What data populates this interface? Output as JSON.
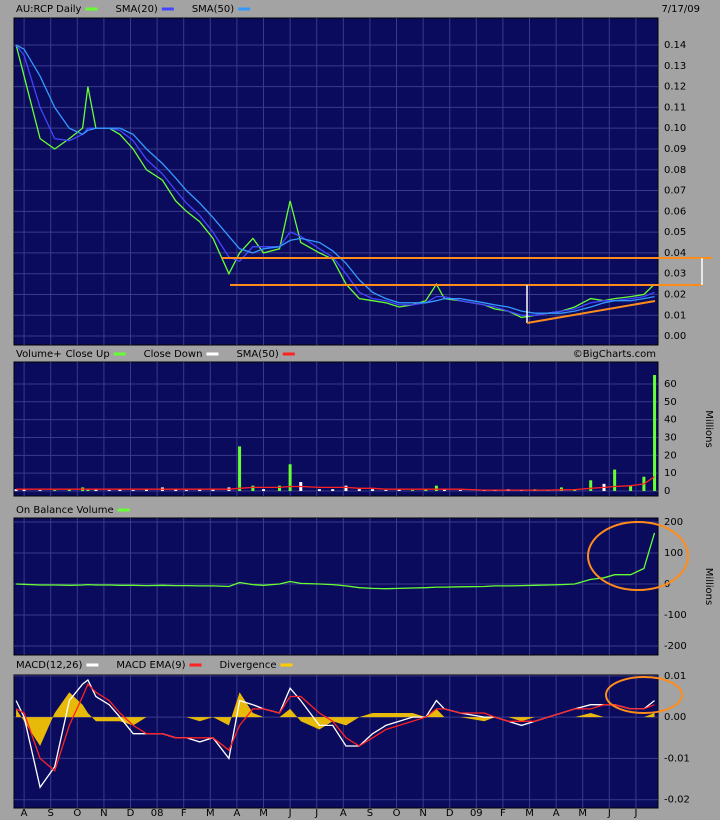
{
  "chart_data": [
    {
      "type": "line",
      "date": "7/17/09",
      "x": [
        -0.3,
        0,
        0.6,
        1.15,
        1.7,
        2.2,
        2.4,
        2.7,
        3.2,
        3.6,
        4.1,
        4.6,
        5.2,
        5.7,
        6.1,
        6.6,
        7.1,
        7.7,
        8.1,
        8.6,
        9.0,
        9.6,
        10,
        10.4,
        11.1,
        11.6,
        12.1,
        12.6,
        13.1,
        13.6,
        14.1,
        14.6,
        15.1,
        15.5,
        15.8,
        16.4,
        17.3,
        17.7,
        18.2,
        18.7,
        19.2,
        19.7,
        20.2,
        20.7,
        21.3,
        21.8,
        22.2,
        22.8,
        23.3,
        23.7
      ],
      "xlim": [
        -0.38,
        23.83
      ],
      "xticks": [
        {
          "value": 0,
          "label": "A"
        },
        {
          "value": 1,
          "label": "S"
        },
        {
          "value": 2,
          "label": "O"
        },
        {
          "value": 3,
          "label": "N"
        },
        {
          "value": 4,
          "label": "D"
        },
        {
          "value": 5,
          "label": "08"
        },
        {
          "value": 6,
          "label": "F"
        },
        {
          "value": 7,
          "label": "M"
        },
        {
          "value": 8,
          "label": "A"
        },
        {
          "value": 9,
          "label": "M"
        },
        {
          "value": 10,
          "label": "J"
        },
        {
          "value": 11,
          "label": "J"
        },
        {
          "value": 12,
          "label": "A"
        },
        {
          "value": 13,
          "label": "S"
        },
        {
          "value": 14,
          "label": "O"
        },
        {
          "value": 15,
          "label": "N"
        },
        {
          "value": 16,
          "label": "D"
        },
        {
          "value": 17,
          "label": "09"
        },
        {
          "value": 18,
          "label": "F"
        },
        {
          "value": 19,
          "label": "M"
        },
        {
          "value": 20,
          "label": "A"
        },
        {
          "value": 21,
          "label": "M"
        },
        {
          "value": 22,
          "label": "J"
        },
        {
          "value": 23,
          "label": "J"
        }
      ],
      "ylim": [
        -0.0043,
        0.153
      ],
      "yticks": [
        {
          "value": 0,
          "label": "0.00"
        },
        0.01,
        0.02,
        0.03,
        0.04,
        0.05,
        0.06,
        0.07,
        0.08,
        0.09,
        {
          "value": 0.1,
          "label": "0.10"
        },
        0.11,
        0.12,
        0.13,
        0.14
      ],
      "grid": true,
      "series": [
        {
          "name": "AU:RCP Daily",
          "color": "#66ff33",
          "values": [
            0.14,
            0.125,
            0.095,
            0.09,
            0.095,
            0.1,
            0.12,
            0.1,
            0.1,
            0.097,
            0.09,
            0.08,
            0.075,
            0.065,
            0.06,
            0.055,
            0.047,
            0.03,
            0.04,
            0.047,
            0.04,
            0.042,
            0.065,
            0.045,
            0.04,
            0.037,
            0.025,
            0.018,
            0.017,
            0.016,
            0.014,
            0.015,
            0.017,
            0.025,
            0.018,
            0.017,
            0.015,
            0.013,
            0.012,
            0.009,
            0.01,
            0.011,
            0.012,
            0.014,
            0.018,
            0.017,
            0.018,
            0.019,
            0.02,
            0.025
          ]
        },
        {
          "name": "SMA(20)",
          "color": "#4444ff",
          "values": [
            0.14,
            0.135,
            0.11,
            0.095,
            0.094,
            0.097,
            0.1,
            0.1,
            0.1,
            0.099,
            0.094,
            0.085,
            0.078,
            0.07,
            0.064,
            0.058,
            0.05,
            0.038,
            0.036,
            0.043,
            0.043,
            0.043,
            0.05,
            0.048,
            0.042,
            0.038,
            0.03,
            0.021,
            0.018,
            0.017,
            0.015,
            0.015,
            0.016,
            0.019,
            0.019,
            0.017,
            0.015,
            0.014,
            0.012,
            0.01,
            0.01,
            0.011,
            0.012,
            0.013,
            0.016,
            0.017,
            0.017,
            0.018,
            0.019,
            0.021
          ]
        },
        {
          "name": "SMA(50)",
          "color": "#3399ff",
          "values": [
            0.14,
            0.138,
            0.125,
            0.11,
            0.1,
            0.097,
            0.099,
            0.1,
            0.1,
            0.1,
            0.097,
            0.09,
            0.083,
            0.076,
            0.07,
            0.064,
            0.057,
            0.048,
            0.042,
            0.04,
            0.042,
            0.043,
            0.046,
            0.047,
            0.045,
            0.041,
            0.035,
            0.027,
            0.021,
            0.018,
            0.016,
            0.016,
            0.016,
            0.017,
            0.018,
            0.018,
            0.016,
            0.015,
            0.014,
            0.012,
            0.011,
            0.011,
            0.011,
            0.012,
            0.014,
            0.016,
            0.017,
            0.017,
            0.018,
            0.019
          ]
        }
      ]
    },
    {
      "type": "bar",
      "title": "Volume+",
      "note": "©BigCharts.com",
      "y_label": "Millions",
      "ylim": [
        -2.8,
        72.3
      ],
      "yticks": [
        0,
        10,
        20,
        30,
        40,
        50,
        60
      ],
      "grid": true,
      "series": [
        {
          "name": "Close Up",
          "color": "#66ff33",
          "values": [
            null,
            null,
            null,
            0.5,
            1,
            2,
            1,
            null,
            null,
            null,
            null,
            null,
            null,
            null,
            null,
            null,
            null,
            null,
            25,
            3,
            null,
            3,
            15,
            null,
            null,
            null,
            null,
            null,
            null,
            null,
            null,
            0.5,
            1,
            3,
            null,
            null,
            null,
            null,
            null,
            null,
            1,
            0.5,
            2,
            1,
            6,
            null,
            12,
            3,
            8,
            65
          ]
        },
        {
          "name": "Close Down",
          "color": "#ffffff",
          "values": [
            1,
            1,
            0.5,
            null,
            null,
            null,
            null,
            1,
            0.5,
            1,
            0.5,
            1,
            2,
            1,
            0.5,
            1,
            1,
            2,
            null,
            null,
            1,
            null,
            null,
            5,
            1,
            1,
            3,
            1,
            1,
            0.5,
            1,
            null,
            null,
            null,
            1,
            0.5,
            0.5,
            0.5,
            1,
            0.5,
            null,
            null,
            null,
            null,
            null,
            4,
            null,
            null,
            null,
            null
          ]
        },
        {
          "name": "SMA(50)",
          "color": "#ff2222",
          "style": "line",
          "values": [
            1,
            1,
            1,
            1,
            1,
            1,
            1,
            1,
            1,
            1,
            1,
            1,
            1,
            1,
            1,
            1,
            1,
            1,
            1.5,
            2,
            2,
            2,
            2.5,
            2.5,
            2,
            2,
            2,
            1.5,
            1.5,
            1,
            1,
            1,
            1,
            1,
            1,
            1,
            0.5,
            0.5,
            0.5,
            0.5,
            0.5,
            0.5,
            0.7,
            0.8,
            1.5,
            2,
            2.5,
            3,
            4,
            8
          ]
        }
      ]
    },
    {
      "type": "line",
      "y_label": "Millions",
      "ylim": [
        -229,
        213
      ],
      "yticks": [
        -200,
        -100,
        0,
        100,
        200
      ],
      "grid": true,
      "series": [
        {
          "name": "On Balance Volume",
          "color": "#66ff33",
          "values": [
            0,
            -1,
            -3,
            -3,
            -4,
            -3,
            -2,
            -3,
            -3,
            -4,
            -4,
            -5,
            -4,
            -5,
            -5,
            -6,
            -6,
            -8,
            5,
            -2,
            -4,
            0,
            8,
            2,
            0,
            -2,
            -6,
            -12,
            -14,
            -15,
            -14,
            -13,
            -12,
            -10,
            -10,
            -9,
            -8,
            -6,
            -6,
            -5,
            -4,
            -3,
            -2,
            0,
            15,
            20,
            30,
            30,
            50,
            165
          ]
        }
      ]
    },
    {
      "type": "line",
      "ylim": [
        -0.022,
        0.0102
      ],
      "yticks": [
        -0.02,
        -0.01,
        {
          "value": 0,
          "label": "0.00"
        },
        0.01
      ],
      "grid": true,
      "series": [
        {
          "name": "MACD(12,26)",
          "color": "#ffffff",
          "values": [
            0.004,
            0.0,
            -0.017,
            -0.012,
            0.004,
            0.008,
            0.009,
            0.005,
            0.003,
            0.0,
            -0.004,
            -0.004,
            -0.004,
            -0.005,
            -0.005,
            -0.006,
            -0.005,
            -0.01,
            0.004,
            0.003,
            0.002,
            0.001,
            0.007,
            0.004,
            -0.002,
            -0.002,
            -0.007,
            -0.007,
            -0.004,
            -0.002,
            -0.001,
            0.0,
            0.0,
            0.004,
            0.002,
            0.001,
            0.0,
            0.0,
            -0.001,
            -0.002,
            -0.001,
            0.0,
            0.001,
            0.002,
            0.003,
            0.003,
            0.003,
            0.002,
            0.002,
            0.004
          ]
        },
        {
          "name": "MACD EMA(9)",
          "color": "#ff2222",
          "values": [
            0.002,
            0.001,
            -0.01,
            -0.013,
            -0.002,
            0.005,
            0.008,
            0.006,
            0.004,
            0.001,
            -0.002,
            -0.004,
            -0.004,
            -0.005,
            -0.005,
            -0.005,
            -0.005,
            -0.008,
            -0.002,
            0.002,
            0.002,
            0.001,
            0.005,
            0.005,
            0.001,
            -0.001,
            -0.005,
            -0.007,
            -0.005,
            -0.003,
            -0.002,
            -0.001,
            0.0,
            0.002,
            0.002,
            0.001,
            0.001,
            0.0,
            -0.001,
            -0.001,
            -0.001,
            0.0,
            0.001,
            0.002,
            0.002,
            0.003,
            0.003,
            0.002,
            0.002,
            0.003
          ]
        },
        {
          "name": "Divergence",
          "color": "#ffcc00",
          "style": "area",
          "values": [
            0.002,
            -0.001,
            -0.007,
            0.001,
            0.006,
            0.003,
            0.001,
            -0.001,
            -0.001,
            -0.001,
            -0.002,
            0,
            0,
            0,
            0,
            -0.001,
            0,
            -0.002,
            0.006,
            0.001,
            0,
            0,
            0.002,
            -0.001,
            -0.003,
            -0.001,
            -0.002,
            0,
            0.001,
            0.001,
            0.001,
            0.001,
            0,
            0.002,
            0,
            0,
            -0.001,
            0,
            0,
            -0.001,
            0,
            0,
            0,
            0,
            0.001,
            0,
            0,
            0,
            0,
            0.001
          ]
        }
      ]
    }
  ]
}
